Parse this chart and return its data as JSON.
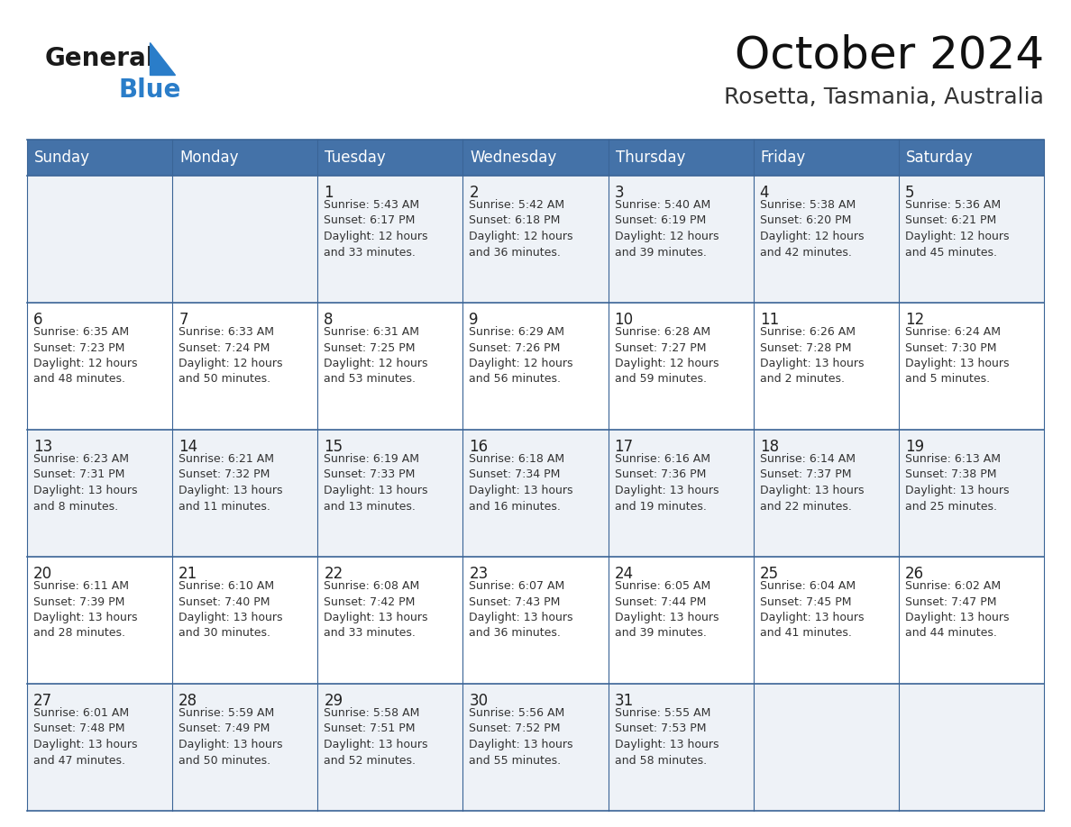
{
  "title": "October 2024",
  "subtitle": "Rosetta, Tasmania, Australia",
  "header_color": "#4472a8",
  "header_text_color": "#ffffff",
  "cell_bg_even": "#eef2f7",
  "cell_bg_odd": "#ffffff",
  "border_color": "#3a6496",
  "text_color": "#333333",
  "days_of_week": [
    "Sunday",
    "Monday",
    "Tuesday",
    "Wednesday",
    "Thursday",
    "Friday",
    "Saturday"
  ],
  "weeks": [
    [
      {
        "day": "",
        "info": ""
      },
      {
        "day": "",
        "info": ""
      },
      {
        "day": "1",
        "info": "Sunrise: 5:43 AM\nSunset: 6:17 PM\nDaylight: 12 hours\nand 33 minutes."
      },
      {
        "day": "2",
        "info": "Sunrise: 5:42 AM\nSunset: 6:18 PM\nDaylight: 12 hours\nand 36 minutes."
      },
      {
        "day": "3",
        "info": "Sunrise: 5:40 AM\nSunset: 6:19 PM\nDaylight: 12 hours\nand 39 minutes."
      },
      {
        "day": "4",
        "info": "Sunrise: 5:38 AM\nSunset: 6:20 PM\nDaylight: 12 hours\nand 42 minutes."
      },
      {
        "day": "5",
        "info": "Sunrise: 5:36 AM\nSunset: 6:21 PM\nDaylight: 12 hours\nand 45 minutes."
      }
    ],
    [
      {
        "day": "6",
        "info": "Sunrise: 6:35 AM\nSunset: 7:23 PM\nDaylight: 12 hours\nand 48 minutes."
      },
      {
        "day": "7",
        "info": "Sunrise: 6:33 AM\nSunset: 7:24 PM\nDaylight: 12 hours\nand 50 minutes."
      },
      {
        "day": "8",
        "info": "Sunrise: 6:31 AM\nSunset: 7:25 PM\nDaylight: 12 hours\nand 53 minutes."
      },
      {
        "day": "9",
        "info": "Sunrise: 6:29 AM\nSunset: 7:26 PM\nDaylight: 12 hours\nand 56 minutes."
      },
      {
        "day": "10",
        "info": "Sunrise: 6:28 AM\nSunset: 7:27 PM\nDaylight: 12 hours\nand 59 minutes."
      },
      {
        "day": "11",
        "info": "Sunrise: 6:26 AM\nSunset: 7:28 PM\nDaylight: 13 hours\nand 2 minutes."
      },
      {
        "day": "12",
        "info": "Sunrise: 6:24 AM\nSunset: 7:30 PM\nDaylight: 13 hours\nand 5 minutes."
      }
    ],
    [
      {
        "day": "13",
        "info": "Sunrise: 6:23 AM\nSunset: 7:31 PM\nDaylight: 13 hours\nand 8 minutes."
      },
      {
        "day": "14",
        "info": "Sunrise: 6:21 AM\nSunset: 7:32 PM\nDaylight: 13 hours\nand 11 minutes."
      },
      {
        "day": "15",
        "info": "Sunrise: 6:19 AM\nSunset: 7:33 PM\nDaylight: 13 hours\nand 13 minutes."
      },
      {
        "day": "16",
        "info": "Sunrise: 6:18 AM\nSunset: 7:34 PM\nDaylight: 13 hours\nand 16 minutes."
      },
      {
        "day": "17",
        "info": "Sunrise: 6:16 AM\nSunset: 7:36 PM\nDaylight: 13 hours\nand 19 minutes."
      },
      {
        "day": "18",
        "info": "Sunrise: 6:14 AM\nSunset: 7:37 PM\nDaylight: 13 hours\nand 22 minutes."
      },
      {
        "day": "19",
        "info": "Sunrise: 6:13 AM\nSunset: 7:38 PM\nDaylight: 13 hours\nand 25 minutes."
      }
    ],
    [
      {
        "day": "20",
        "info": "Sunrise: 6:11 AM\nSunset: 7:39 PM\nDaylight: 13 hours\nand 28 minutes."
      },
      {
        "day": "21",
        "info": "Sunrise: 6:10 AM\nSunset: 7:40 PM\nDaylight: 13 hours\nand 30 minutes."
      },
      {
        "day": "22",
        "info": "Sunrise: 6:08 AM\nSunset: 7:42 PM\nDaylight: 13 hours\nand 33 minutes."
      },
      {
        "day": "23",
        "info": "Sunrise: 6:07 AM\nSunset: 7:43 PM\nDaylight: 13 hours\nand 36 minutes."
      },
      {
        "day": "24",
        "info": "Sunrise: 6:05 AM\nSunset: 7:44 PM\nDaylight: 13 hours\nand 39 minutes."
      },
      {
        "day": "25",
        "info": "Sunrise: 6:04 AM\nSunset: 7:45 PM\nDaylight: 13 hours\nand 41 minutes."
      },
      {
        "day": "26",
        "info": "Sunrise: 6:02 AM\nSunset: 7:47 PM\nDaylight: 13 hours\nand 44 minutes."
      }
    ],
    [
      {
        "day": "27",
        "info": "Sunrise: 6:01 AM\nSunset: 7:48 PM\nDaylight: 13 hours\nand 47 minutes."
      },
      {
        "day": "28",
        "info": "Sunrise: 5:59 AM\nSunset: 7:49 PM\nDaylight: 13 hours\nand 50 minutes."
      },
      {
        "day": "29",
        "info": "Sunrise: 5:58 AM\nSunset: 7:51 PM\nDaylight: 13 hours\nand 52 minutes."
      },
      {
        "day": "30",
        "info": "Sunrise: 5:56 AM\nSunset: 7:52 PM\nDaylight: 13 hours\nand 55 minutes."
      },
      {
        "day": "31",
        "info": "Sunrise: 5:55 AM\nSunset: 7:53 PM\nDaylight: 13 hours\nand 58 minutes."
      },
      {
        "day": "",
        "info": ""
      },
      {
        "day": "",
        "info": ""
      }
    ]
  ],
  "logo_general_color": "#1a1a1a",
  "logo_blue_color": "#2a7dc9",
  "title_fontsize": 36,
  "subtitle_fontsize": 18,
  "header_fontsize": 12,
  "day_num_fontsize": 12,
  "info_fontsize": 9
}
